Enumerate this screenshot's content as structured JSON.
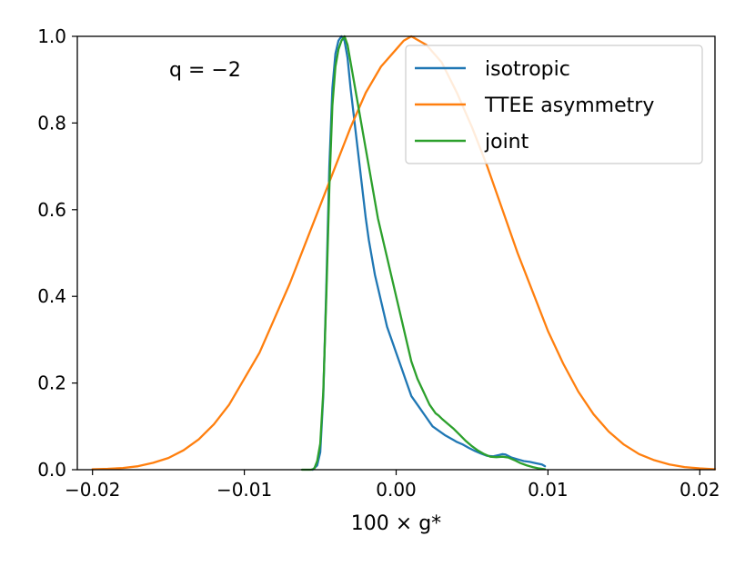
{
  "chart_data": {
    "type": "line",
    "title": "",
    "xlabel": "100 × g*",
    "ylabel": "",
    "xlim": [
      -0.021,
      0.021
    ],
    "ylim": [
      0.0,
      1.0
    ],
    "xticks": [
      -0.02,
      -0.01,
      0.0,
      0.01,
      0.02
    ],
    "xtick_labels": [
      "−0.02",
      "−0.01",
      "0.00",
      "0.01",
      "0.02"
    ],
    "yticks": [
      0.0,
      0.2,
      0.4,
      0.6,
      0.8,
      1.0
    ],
    "ytick_labels": [
      "0.0",
      "0.2",
      "0.4",
      "0.6",
      "0.8",
      "1.0"
    ],
    "annotation": "q = −2",
    "legend_position": "top-right",
    "series": [
      {
        "name": "isotropic",
        "color": "#1f77b4",
        "x": [
          -0.0055,
          -0.0052,
          -0.005,
          -0.0048,
          -0.0046,
          -0.0044,
          -0.0042,
          -0.004,
          -0.0038,
          -0.0036,
          -0.0034,
          -0.0032,
          -0.003,
          -0.0028,
          -0.0026,
          -0.0024,
          -0.0022,
          -0.002,
          -0.0018,
          -0.0016,
          -0.0014,
          -0.0012,
          -0.001,
          -0.0008,
          -0.0006,
          -0.0004,
          -0.0002,
          0.0,
          0.0002,
          0.0004,
          0.0006,
          0.0008,
          0.001,
          0.0012,
          0.0014,
          0.0016,
          0.0018,
          0.002,
          0.0022,
          0.0024,
          0.0026,
          0.0028,
          0.003,
          0.0032,
          0.0034,
          0.0036,
          0.0038,
          0.004,
          0.0044,
          0.0048,
          0.0052,
          0.0056,
          0.006,
          0.0064,
          0.0068,
          0.007,
          0.0072,
          0.0076,
          0.008,
          0.0084,
          0.0088,
          0.0092,
          0.0096,
          0.0098
        ],
        "y": [
          0.0,
          0.01,
          0.04,
          0.17,
          0.42,
          0.7,
          0.88,
          0.96,
          0.99,
          1.0,
          0.99,
          0.95,
          0.88,
          0.82,
          0.76,
          0.7,
          0.64,
          0.58,
          0.53,
          0.49,
          0.45,
          0.42,
          0.39,
          0.36,
          0.33,
          0.31,
          0.29,
          0.27,
          0.25,
          0.23,
          0.21,
          0.19,
          0.17,
          0.16,
          0.15,
          0.14,
          0.13,
          0.12,
          0.11,
          0.1,
          0.095,
          0.09,
          0.085,
          0.08,
          0.076,
          0.072,
          0.068,
          0.064,
          0.058,
          0.05,
          0.043,
          0.037,
          0.032,
          0.031,
          0.034,
          0.036,
          0.035,
          0.028,
          0.024,
          0.02,
          0.018,
          0.015,
          0.012,
          0.008
        ]
      },
      {
        "name": "TTEE asymmetry",
        "color": "#ff7f0e",
        "x": [
          -0.02,
          -0.019,
          -0.018,
          -0.017,
          -0.016,
          -0.015,
          -0.014,
          -0.013,
          -0.012,
          -0.011,
          -0.01,
          -0.009,
          -0.008,
          -0.007,
          -0.006,
          -0.005,
          -0.004,
          -0.003,
          -0.002,
          -0.001,
          0.0,
          0.0005,
          0.001,
          0.0015,
          0.002,
          0.003,
          0.004,
          0.005,
          0.006,
          0.007,
          0.008,
          0.009,
          0.01,
          0.011,
          0.012,
          0.013,
          0.014,
          0.015,
          0.016,
          0.017,
          0.018,
          0.019,
          0.02,
          0.021
        ],
        "y": [
          0.001,
          0.002,
          0.004,
          0.008,
          0.016,
          0.027,
          0.045,
          0.07,
          0.105,
          0.15,
          0.21,
          0.27,
          0.35,
          0.43,
          0.52,
          0.61,
          0.7,
          0.79,
          0.87,
          0.93,
          0.97,
          0.99,
          1.0,
          0.99,
          0.98,
          0.94,
          0.87,
          0.79,
          0.7,
          0.6,
          0.5,
          0.41,
          0.32,
          0.245,
          0.18,
          0.128,
          0.088,
          0.058,
          0.036,
          0.022,
          0.012,
          0.006,
          0.003,
          0.001
        ]
      },
      {
        "name": "joint",
        "color": "#2ca02c",
        "x": [
          -0.0062,
          -0.0056,
          -0.0054,
          -0.0052,
          -0.005,
          -0.0048,
          -0.0046,
          -0.0044,
          -0.0042,
          -0.004,
          -0.0038,
          -0.0036,
          -0.0034,
          -0.0032,
          -0.003,
          -0.0028,
          -0.0026,
          -0.0024,
          -0.0022,
          -0.002,
          -0.0018,
          -0.0016,
          -0.0014,
          -0.0012,
          -0.001,
          -0.0008,
          -0.0006,
          -0.0004,
          -0.0002,
          0.0,
          0.0002,
          0.0004,
          0.0006,
          0.0008,
          0.001,
          0.0012,
          0.0014,
          0.0016,
          0.0018,
          0.002,
          0.0022,
          0.0024,
          0.0026,
          0.0028,
          0.003,
          0.0034,
          0.0038,
          0.0042,
          0.0046,
          0.005,
          0.0054,
          0.0058,
          0.0062,
          0.0066,
          0.007,
          0.0074,
          0.0078,
          0.0082,
          0.0086,
          0.009,
          0.0094,
          0.0098
        ],
        "y": [
          0.0,
          0.0,
          0.002,
          0.02,
          0.06,
          0.18,
          0.4,
          0.65,
          0.84,
          0.93,
          0.97,
          0.99,
          1.0,
          0.98,
          0.94,
          0.9,
          0.86,
          0.82,
          0.78,
          0.74,
          0.7,
          0.66,
          0.62,
          0.58,
          0.55,
          0.52,
          0.49,
          0.46,
          0.43,
          0.4,
          0.37,
          0.34,
          0.31,
          0.28,
          0.25,
          0.23,
          0.21,
          0.195,
          0.18,
          0.165,
          0.15,
          0.14,
          0.13,
          0.125,
          0.118,
          0.106,
          0.094,
          0.08,
          0.066,
          0.054,
          0.044,
          0.036,
          0.03,
          0.029,
          0.03,
          0.028,
          0.022,
          0.015,
          0.01,
          0.006,
          0.003,
          0.001
        ]
      }
    ]
  }
}
